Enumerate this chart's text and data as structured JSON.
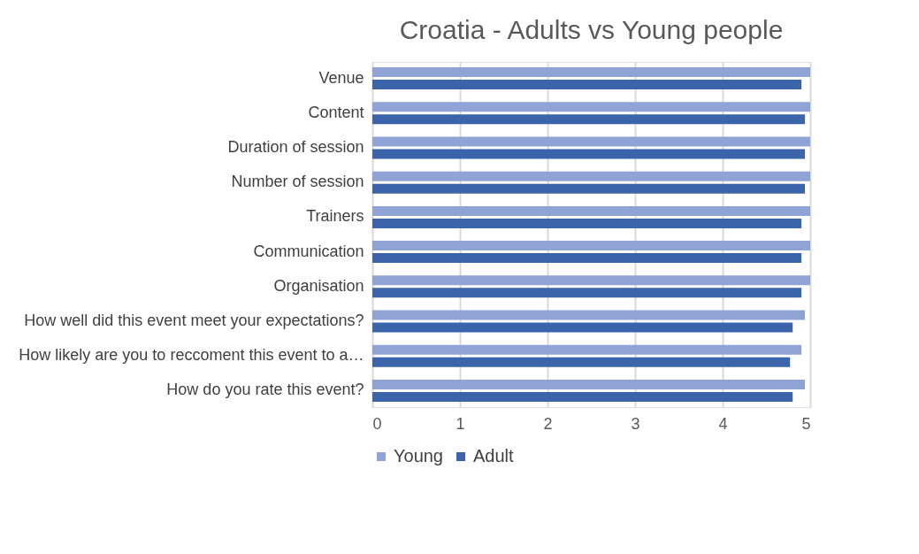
{
  "chart_data": {
    "type": "bar",
    "orientation": "horizontal",
    "title": "Croatia - Adults vs Young people",
    "categories": [
      "Venue",
      "Content",
      "Duration of session",
      "Number of session",
      "Trainers ",
      "Communication",
      "Organisation",
      "How well did this event meet your expectations?",
      "How likely are you to reccoment this event to a…",
      "How do you rate this event?"
    ],
    "series": [
      {
        "name": "Young",
        "color": "#8fa4d4",
        "values": [
          5,
          5,
          5,
          5,
          5,
          5,
          5,
          4.94,
          4.9,
          4.94
        ]
      },
      {
        "name": "Adult",
        "color": "#3c64ab",
        "values": [
          4.9,
          4.94,
          4.94,
          4.94,
          4.9,
          4.9,
          4.9,
          4.8,
          4.77,
          4.8
        ]
      }
    ],
    "xlim": [
      0,
      5
    ],
    "xticks": [
      0,
      1,
      2,
      3,
      4,
      5
    ],
    "grid": "x",
    "legend": "bottom"
  }
}
